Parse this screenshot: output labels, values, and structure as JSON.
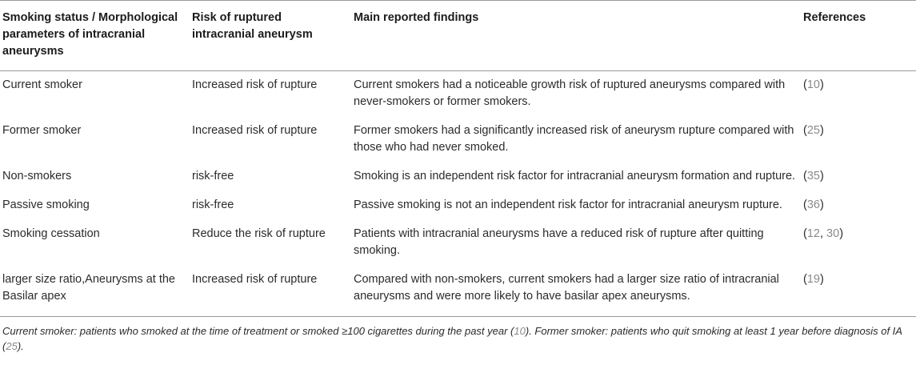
{
  "table": {
    "headers": [
      "Smoking status / Morphological parameters of intracranial aneurysms",
      "Risk of ruptured intracranial aneurysm",
      "Main reported findings",
      "References"
    ],
    "rows": [
      {
        "status": "Current smoker",
        "risk": "Increased risk of rupture",
        "finding": "Current smokers had a noticeable growth risk of ruptured aneurysms compared with never-smokers or former smokers.",
        "refs": [
          "10"
        ]
      },
      {
        "status": "Former smoker",
        "risk": "Increased risk of rupture",
        "finding": "Former smokers had a significantly increased risk of aneurysm rupture compared with those who had never smoked.",
        "refs": [
          "25"
        ]
      },
      {
        "status": "Non-smokers",
        "risk": "risk-free",
        "finding": "Smoking is an independent risk factor for intracranial aneurysm formation and rupture.",
        "refs": [
          "35"
        ]
      },
      {
        "status": "Passive smoking",
        "risk": "risk-free",
        "finding": "Passive smoking is not an independent risk factor for intracranial aneurysm rupture.",
        "refs": [
          "36"
        ]
      },
      {
        "status": "Smoking cessation",
        "risk": "Reduce the risk of rupture",
        "finding": "Patients with intracranial aneurysms have a reduced risk of rupture after quitting smoking.",
        "refs": [
          "12",
          "30"
        ]
      },
      {
        "status": "larger size ratio,Aneurysms at the Basilar apex",
        "risk": "Increased risk of rupture",
        "finding": "Compared with non-smokers, current smokers had a larger size ratio of intracranial aneurysms and were more likely to have basilar apex aneurysms.",
        "refs": [
          "19"
        ]
      }
    ]
  },
  "footnote": {
    "part1": "Current smoker: patients who smoked at the time of treatment or smoked ≥100 cigarettes during the past year (",
    "ref1": "10",
    "part2": "). Former smoker: patients who quit smoking at least 1 year before diagnosis of IA (",
    "ref2": "25",
    "part3": ")."
  },
  "colors": {
    "text": "#2b2b2b",
    "reference_link": "#8a8a8a",
    "rule": "#9a9a9a"
  }
}
